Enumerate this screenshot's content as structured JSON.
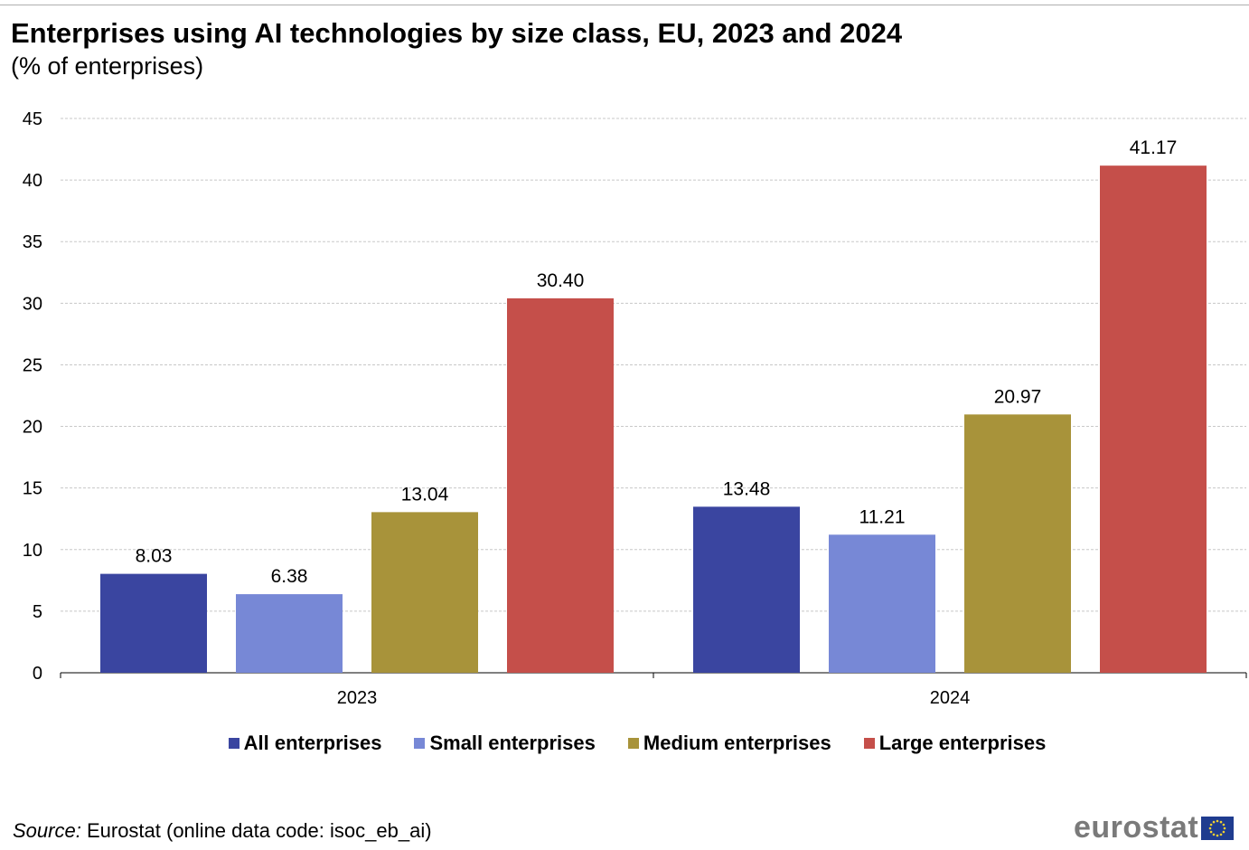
{
  "title": "Enterprises using AI technologies by size class, EU, 2023 and 2024",
  "subtitle": "(% of enterprises)",
  "chart_data": {
    "type": "bar",
    "categories": [
      "2023",
      "2024"
    ],
    "series": [
      {
        "name": "All enterprises",
        "color": "#3a45a0",
        "values": [
          8.03,
          13.48
        ],
        "labels": [
          "8.03",
          "13.48"
        ]
      },
      {
        "name": "Small enterprises",
        "color": "#7788d6",
        "values": [
          6.38,
          11.21
        ],
        "labels": [
          "6.38",
          "11.21"
        ]
      },
      {
        "name": "Medium enterprises",
        "color": "#a8933a",
        "values": [
          13.04,
          20.97
        ],
        "labels": [
          "13.04",
          "20.97"
        ]
      },
      {
        "name": "Large enterprises",
        "color": "#c54f4a",
        "values": [
          30.4,
          41.17
        ],
        "labels": [
          "30.40",
          "41.17"
        ]
      }
    ],
    "ylim": [
      0,
      45
    ],
    "yticks": [
      "0",
      "5",
      "10",
      "15",
      "20",
      "25",
      "30",
      "35",
      "40",
      "45"
    ],
    "grid": true,
    "legend_position": "bottom"
  },
  "source": {
    "label": "Source:",
    "text": "Eurostat (online data code: isoc_eb_ai)"
  },
  "logo": {
    "text": "eurostat",
    "icon": "eu-flag-icon"
  }
}
